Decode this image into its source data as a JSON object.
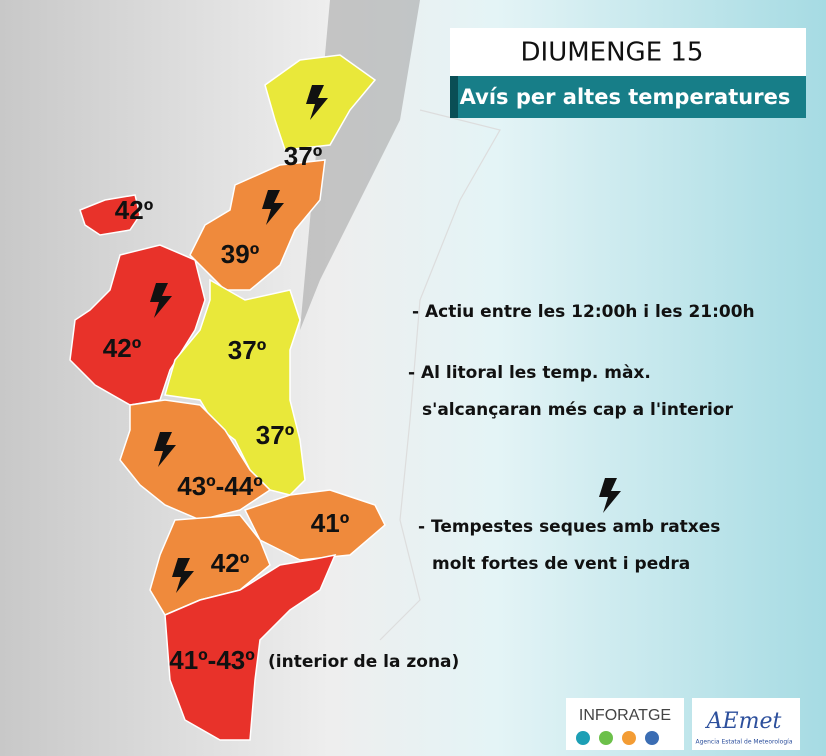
{
  "header": {
    "title": "DIUMENGE 15",
    "subtitle": "Avís per altes temperatures"
  },
  "zones": [
    {
      "label": "37º"
    },
    {
      "label": "39º"
    },
    {
      "label": "42º"
    },
    {
      "label": "42º"
    },
    {
      "label": "37º"
    },
    {
      "label": "37º"
    },
    {
      "label": "43º-44º"
    },
    {
      "label": "41º"
    },
    {
      "label": "42º"
    },
    {
      "label": "41º-43º"
    }
  ],
  "zone_note": "(interior de la zona)",
  "notes": [
    "- Actiu entre les 12:00h i les 21:00h",
    "- Al litoral les temp. màx.",
    "s'alcançaran més cap a l'interior",
    "- Tempestes seques amb ratxes",
    "molt fortes de vent i pedra"
  ],
  "logos": {
    "inforatge": "INFORATGE",
    "aemet": "AEmet",
    "aemet_sub": "Agencia Estatal de Meteorología"
  }
}
